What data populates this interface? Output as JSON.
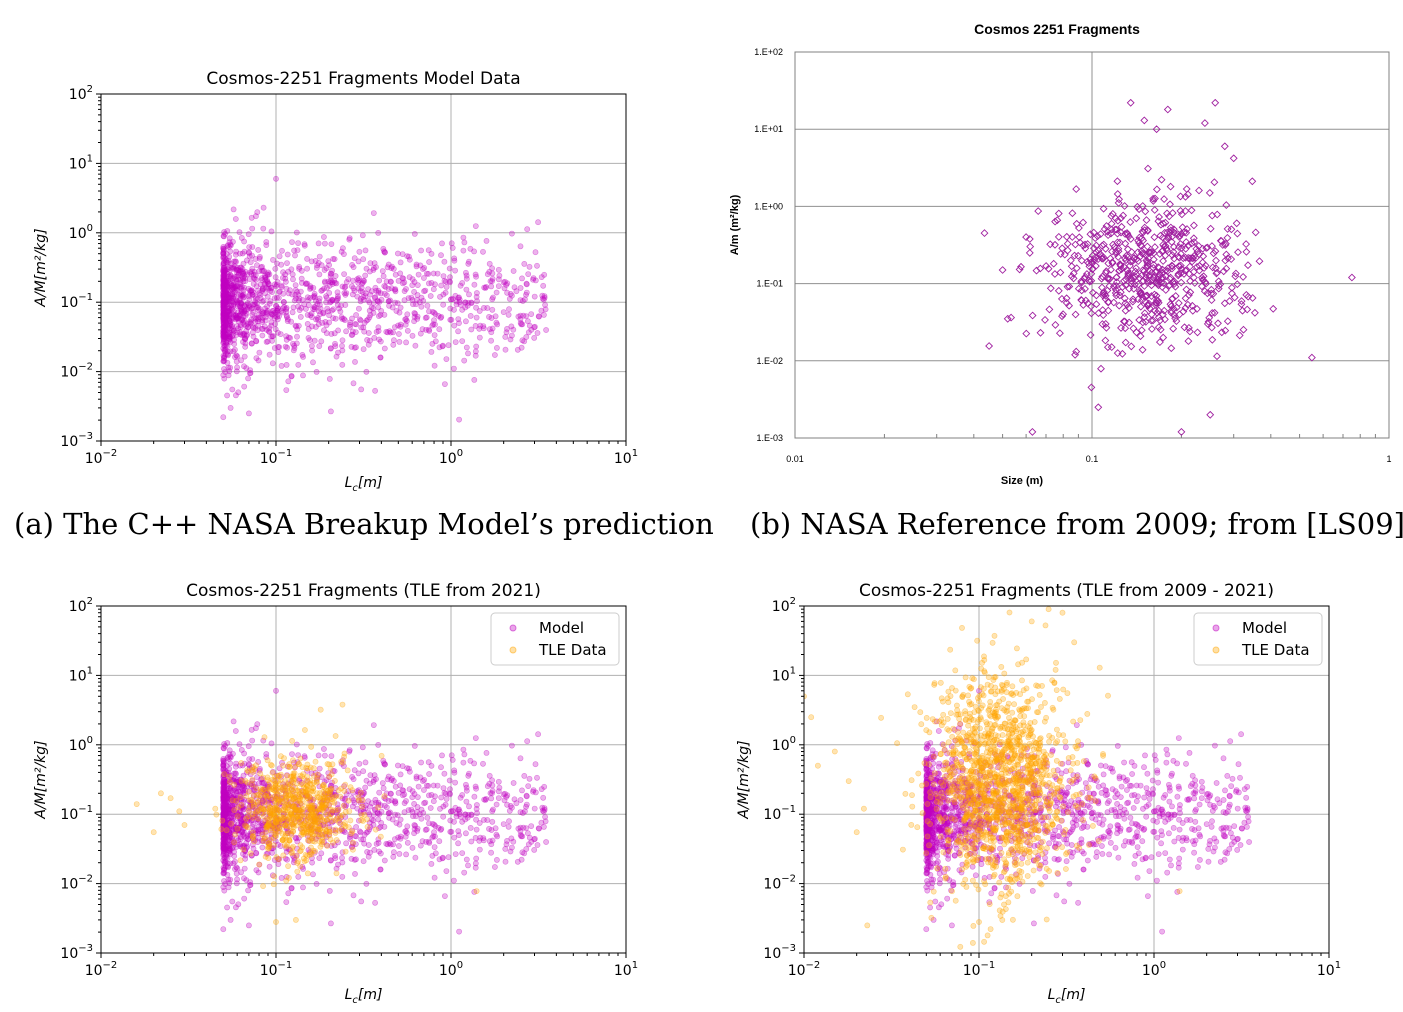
{
  "captions": {
    "a": "(a) The C++ NASA Breakup Model’s prediction",
    "b": "(b) NASA Reference from 2009; from [LS09]"
  },
  "colors": {
    "model": "#c000c0",
    "tle": "#ffa500",
    "nasa": "#a020a0",
    "grid": "#b0b0b0"
  },
  "chart_data": [
    {
      "id": "a",
      "type": "scatter",
      "title": "Cosmos-2251 Fragments Model Data",
      "xlabel_base": "L",
      "xlabel_sub": "c",
      "xlabel_rest": "[m]",
      "ylabel_text": "A/M[m²/kg]",
      "xscale": "log",
      "yscale": "log",
      "xlim": [
        0.01,
        10
      ],
      "ylim": [
        0.001,
        100
      ],
      "x_ticks": [
        {
          "base": "10",
          "exp": "−2"
        },
        {
          "base": "10",
          "exp": "−1"
        },
        {
          "base": "10",
          "exp": "0"
        },
        {
          "base": "10",
          "exp": "1"
        }
      ],
      "y_ticks": [
        {
          "base": "10",
          "exp": "−3"
        },
        {
          "base": "10",
          "exp": "−2"
        },
        {
          "base": "10",
          "exp": "−1"
        },
        {
          "base": "10",
          "exp": "0"
        },
        {
          "base": "10",
          "exp": "1"
        },
        {
          "base": "10",
          "exp": "2"
        }
      ],
      "grid": true,
      "series": [
        {
          "key": "model",
          "marker": "circle",
          "alpha": 0.3,
          "distribution": {
            "x_min": 0.05,
            "x_mode": 0.055,
            "x_max": 3.5,
            "y_center": 0.1,
            "y_spread_decades": 0.45,
            "count": 1500
          },
          "points": [
            [
              0.1,
              6.0
            ],
            [
              3.3,
              0.23
            ],
            [
              2.5,
              0.16
            ],
            [
              1.4,
              0.06
            ],
            [
              1.7,
              0.037
            ],
            [
              1.0,
              0.11
            ],
            [
              0.8,
              0.055
            ],
            [
              0.05,
              0.0022
            ],
            [
              0.055,
              0.003
            ],
            [
              0.07,
              0.0025
            ],
            [
              0.085,
              2.3
            ]
          ]
        }
      ]
    },
    {
      "id": "b",
      "type": "scatter",
      "title": "Cosmos 2251 Fragments",
      "xlabel": "Size (m)",
      "ylabel": "A/m (m²/kg)",
      "xscale": "log",
      "yscale": "log",
      "xlim": [
        0.01,
        1
      ],
      "ylim": [
        0.001,
        100
      ],
      "x_ticks": [
        "0.01",
        "0.1",
        "1"
      ],
      "y_ticks": [
        "1.E-03",
        "1.E-02",
        "1.E-01",
        "1.E+00",
        "1.E+01",
        "1.E+02"
      ],
      "grid": true,
      "series": [
        {
          "key": "nasa",
          "marker": "diamond-open",
          "distribution": {
            "x_center": 0.15,
            "x_spread_decades": 0.17,
            "y_center": 0.16,
            "y_spread_decades": 0.45,
            "count": 650
          },
          "points": [
            [
              0.135,
              22
            ],
            [
              0.26,
              22
            ],
            [
              0.18,
              18
            ],
            [
              0.15,
              13
            ],
            [
              0.165,
              10
            ],
            [
              0.24,
              12
            ],
            [
              0.28,
              6
            ],
            [
              0.3,
              4.2
            ],
            [
              0.75,
              0.12
            ],
            [
              0.55,
              0.011
            ],
            [
              0.063,
              0.0012
            ],
            [
              0.2,
              0.0012
            ],
            [
              0.105,
              0.0025
            ],
            [
              0.25,
              0.002
            ],
            [
              0.05,
              0.15
            ],
            [
              0.052,
              0.035
            ],
            [
              0.06,
              0.4
            ]
          ]
        }
      ]
    },
    {
      "id": "c",
      "type": "scatter",
      "title": "Cosmos-2251 Fragments (TLE from 2021)",
      "xlabel_base": "L",
      "xlabel_sub": "c",
      "xlabel_rest": "[m]",
      "ylabel_text": "A/M[m²/kg]",
      "xscale": "log",
      "yscale": "log",
      "xlim": [
        0.01,
        10
      ],
      "ylim": [
        0.001,
        100
      ],
      "x_ticks": [
        {
          "base": "10",
          "exp": "−2"
        },
        {
          "base": "10",
          "exp": "−1"
        },
        {
          "base": "10",
          "exp": "0"
        },
        {
          "base": "10",
          "exp": "1"
        }
      ],
      "y_ticks": [
        {
          "base": "10",
          "exp": "−3"
        },
        {
          "base": "10",
          "exp": "−2"
        },
        {
          "base": "10",
          "exp": "−1"
        },
        {
          "base": "10",
          "exp": "0"
        },
        {
          "base": "10",
          "exp": "1"
        },
        {
          "base": "10",
          "exp": "2"
        }
      ],
      "grid": true,
      "legend": {
        "position": "upper right",
        "entries": [
          "Model",
          "TLE Data"
        ]
      },
      "series": [
        {
          "key": "model",
          "marker": "circle",
          "alpha": 0.3,
          "distribution": {
            "x_min": 0.05,
            "x_mode": 0.055,
            "x_max": 3.5,
            "y_center": 0.1,
            "y_spread_decades": 0.45,
            "count": 1500
          },
          "points": [
            [
              0.1,
              6.0
            ],
            [
              3.3,
              0.23
            ],
            [
              2.5,
              0.16
            ],
            [
              1.4,
              0.06
            ],
            [
              1.7,
              0.037
            ],
            [
              1.0,
              0.11
            ],
            [
              0.8,
              0.055
            ],
            [
              0.05,
              0.0022
            ],
            [
              0.055,
              0.003
            ],
            [
              0.07,
              0.0025
            ]
          ]
        },
        {
          "key": "tle",
          "marker": "circle",
          "alpha": 0.3,
          "distribution": {
            "x_center": 0.13,
            "x_spread_decades": 0.17,
            "y_center": 0.12,
            "y_spread_decades": 0.35,
            "count": 700
          },
          "points": [
            [
              0.016,
              0.14
            ],
            [
              0.02,
              0.055
            ],
            [
              0.022,
              0.2
            ],
            [
              0.025,
              0.17
            ],
            [
              0.028,
              0.11
            ],
            [
              0.03,
              0.07
            ],
            [
              0.045,
              0.12
            ],
            [
              0.24,
              3.8
            ],
            [
              0.18,
              3.2
            ],
            [
              1.4,
              0.0078
            ],
            [
              0.1,
              0.0028
            ],
            [
              0.13,
              0.003
            ]
          ]
        }
      ]
    },
    {
      "id": "d",
      "type": "scatter",
      "title": "Cosmos-2251 Fragments (TLE from 2009 - 2021)",
      "xlabel_base": "L",
      "xlabel_sub": "c",
      "xlabel_rest": "[m]",
      "ylabel_text": "A/M[m²/kg]",
      "xscale": "log",
      "yscale": "log",
      "xlim": [
        0.01,
        10
      ],
      "ylim": [
        0.001,
        100
      ],
      "x_ticks": [
        {
          "base": "10",
          "exp": "−2"
        },
        {
          "base": "10",
          "exp": "−1"
        },
        {
          "base": "10",
          "exp": "0"
        },
        {
          "base": "10",
          "exp": "1"
        }
      ],
      "y_ticks": [
        {
          "base": "10",
          "exp": "−3"
        },
        {
          "base": "10",
          "exp": "−2"
        },
        {
          "base": "10",
          "exp": "−1"
        },
        {
          "base": "10",
          "exp": "0"
        },
        {
          "base": "10",
          "exp": "1"
        },
        {
          "base": "10",
          "exp": "2"
        }
      ],
      "grid": true,
      "legend": {
        "position": "upper right",
        "entries": [
          "Model",
          "TLE Data"
        ]
      },
      "series": [
        {
          "key": "model",
          "marker": "circle",
          "alpha": 0.3,
          "distribution": {
            "x_min": 0.05,
            "x_mode": 0.055,
            "x_max": 3.5,
            "y_center": 0.1,
            "y_spread_decades": 0.45,
            "count": 1500
          },
          "points": [
            [
              0.1,
              6.0
            ],
            [
              3.3,
              0.23
            ],
            [
              2.5,
              0.16
            ],
            [
              1.4,
              0.06
            ],
            [
              1.7,
              0.037
            ],
            [
              1.0,
              0.11
            ],
            [
              0.8,
              0.055
            ],
            [
              0.05,
              0.0022
            ],
            [
              0.055,
              0.003
            ],
            [
              0.07,
              0.0025
            ]
          ]
        },
        {
          "key": "tle",
          "marker": "circle",
          "alpha": 0.3,
          "distribution": {
            "x_center": 0.13,
            "x_spread_decades": 0.2,
            "y_center": 0.3,
            "y_spread_decades": 0.75,
            "count": 1400
          },
          "points": [
            [
              0.01,
              5
            ],
            [
              0.011,
              2.5
            ],
            [
              0.012,
              0.5
            ],
            [
              0.015,
              0.8
            ],
            [
              0.018,
              0.3
            ],
            [
              0.02,
              0.055
            ],
            [
              0.022,
              0.12
            ],
            [
              0.023,
              0.0025
            ],
            [
              0.3,
              80
            ],
            [
              0.25,
              90
            ],
            [
              0.2,
              60
            ],
            [
              0.35,
              30
            ],
            [
              1.4,
              0.0078
            ],
            [
              0.1,
              0.0028
            ]
          ]
        }
      ]
    }
  ]
}
